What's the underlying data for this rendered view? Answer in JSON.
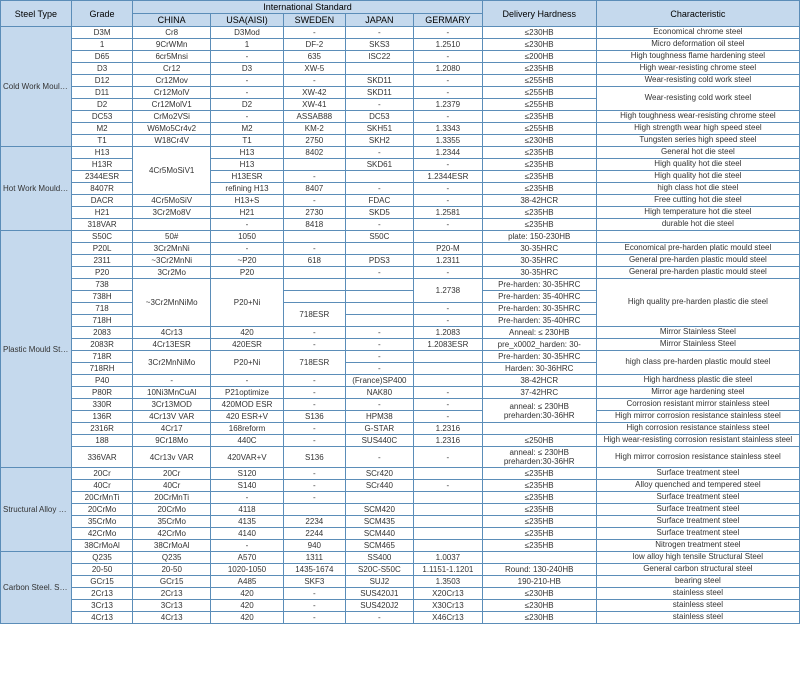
{
  "headers": {
    "steelType": "Steel Type",
    "grade": "Grade",
    "intStd": "International Standard",
    "delivery": "Delivery Hardness",
    "char": "Characteristic",
    "china": "CHINA",
    "usa": "USA(AISI)",
    "sweden": "SWEDEN",
    "japan": "JAPAN",
    "germany": "GERMARY"
  },
  "columnWidths": {
    "cat": 62,
    "grade": 54,
    "china": 68,
    "usa": 64,
    "sweden": 54,
    "japan": 60,
    "germany": 60,
    "delivery": 100,
    "char": 178
  },
  "colors": {
    "headerBg": "#c5d9ed",
    "border": "#5b8db8"
  },
  "categories": [
    {
      "name": "Cold Work Mould Steel",
      "rows": [
        {
          "grade": "D3M",
          "china": "Cr8",
          "usa": "D3Mod",
          "sweden": "-",
          "japan": "-",
          "germany": "-",
          "delivery": "≤230HB",
          "char": "Economical chrome steel"
        },
        {
          "grade": "1",
          "china": "9CrWMn",
          "usa": "1",
          "sweden": "DF-2",
          "japan": "SKS3",
          "germany": "1.2510",
          "delivery": "≤230HB",
          "char": "Micro deformation oil steel"
        },
        {
          "grade": "D65",
          "china": "6cr5Mnsi",
          "usa": "-",
          "sweden": "635",
          "japan": "ISC22",
          "germany": "-",
          "delivery": "≤200HB",
          "char": "High toughness flame hardening steel"
        },
        {
          "grade": "D3",
          "china": "Cr12",
          "usa": "D3",
          "sweden": "XW-5",
          "japan": "",
          "germany": "1.2080",
          "delivery": "≤235HB",
          "char": "High wear-resisting chrome steel"
        },
        {
          "grade": "D12",
          "china": "Cr12Mov",
          "usa": "-",
          "sweden": "-",
          "japan": "SKD11",
          "germany": "-",
          "delivery": "≤255HB",
          "char": "Wear-resisting cold work steel"
        },
        {
          "grade": "D11",
          "china": "Cr12MolV",
          "usa": "-",
          "sweden": "XW-42",
          "japan": "SKD11",
          "germany": "-",
          "delivery": "≤255HB",
          "char": "Wear-resisting cold work steel",
          "charSpan": 2
        },
        {
          "grade": "D2",
          "china": "Cr12MolV1",
          "usa": "D2",
          "sweden": "XW-41",
          "japan": "-",
          "germany": "1.2379",
          "delivery": "≤255HB"
        },
        {
          "grade": "DC53",
          "china": "CrMo2VSi",
          "usa": "-",
          "sweden": "ASSAB88",
          "japan": "DC53",
          "germany": "-",
          "delivery": "≤235HB",
          "char": "High toughness wear-resisting chrome steel"
        },
        {
          "grade": "M2",
          "china": "W6Mo5Cr4v2",
          "usa": "M2",
          "sweden": "KM-2",
          "japan": "SKH51",
          "germany": "1.3343",
          "delivery": "≤255HB",
          "char": "High strength wear high speed steel"
        },
        {
          "grade": "T1",
          "china": "W18Cr4V",
          "usa": "T1",
          "sweden": "2750",
          "japan": "SKH2",
          "germany": "1.3355",
          "delivery": "≤230HB",
          "char": "Tungsten series high speed steel"
        }
      ]
    },
    {
      "name": "Hot Work Mould Steel",
      "rows": [
        {
          "grade": "H13",
          "china": "4Cr5MoSiV1",
          "chinaSpan": 4,
          "usa": "H13",
          "sweden": "8402",
          "japan": "-",
          "germany": "1.2344",
          "delivery": "≤235HB",
          "char": "General hot die steel"
        },
        {
          "grade": "H13R",
          "usa": "H13",
          "sweden": "",
          "japan": "SKD61",
          "germany": "-",
          "delivery": "≤235HB",
          "char": "High quality hot die steel"
        },
        {
          "grade": "2344ESR",
          "usa": "H13ESR",
          "sweden": "-",
          "japan": "",
          "germany": "1.2344ESR",
          "delivery": "≤235HB",
          "char": "High quality hot die steel"
        },
        {
          "grade": "8407R",
          "usa": "refining H13",
          "sweden": "8407",
          "japan": "-",
          "germany": "-",
          "delivery": "≤235HB",
          "char": "high class hot die steel"
        },
        {
          "grade": "DACR",
          "china": "4Cr5MoSiV",
          "usa": "H13+S",
          "sweden": "-",
          "japan": "FDAC",
          "germany": "-",
          "delivery": "38-42HCR",
          "char": "Free cutting hot die steel"
        },
        {
          "grade": "H21",
          "china": "3Cr2Mo8V",
          "usa": "H21",
          "sweden": "2730",
          "japan": "SKD5",
          "germany": "1.2581",
          "delivery": "≤235HB",
          "char": "High temperature hot die steel"
        },
        {
          "grade": "318VAR",
          "china": "",
          "usa": "-",
          "sweden": "8418",
          "japan": "-",
          "germany": "-",
          "delivery": "≤235HB",
          "char": "durable hot die steel"
        }
      ]
    },
    {
      "name": "Plastic Mould Steel",
      "rows": [
        {
          "grade": "S50C",
          "china": "50#",
          "usa": "1050",
          "sweden": "",
          "japan": "S50C",
          "germany": "",
          "delivery": "plate:    150-230HB",
          "char": ""
        },
        {
          "grade": "P20L",
          "china": "3Cr2MnNi",
          "usa": "-",
          "sweden": "-",
          "japan": "",
          "germany": "P20-M",
          "delivery": "30-35HRC",
          "char": "Economical pre-harden platic mould steel"
        },
        {
          "grade": "2311",
          "china": "~3Cr2MnNi",
          "usa": "~P20",
          "sweden": "618",
          "japan": "PDS3",
          "germany": "1.2311",
          "delivery": "30-35HRC",
          "char": "General pre-harden plastic mould steel"
        },
        {
          "grade": "P20",
          "china": "3Cr2Mo",
          "usa": "P20",
          "sweden": "",
          "japan": "-",
          "germany": "-",
          "delivery": "30-35HRC",
          "char": "General pre-harden plastic mould steel"
        },
        {
          "grade": "738",
          "china": "~3Cr2MnNiMo",
          "chinaSpan": 4,
          "usa": "P20+Ni",
          "usaSpan": 4,
          "sweden": "",
          "japan": "",
          "germany": "1.2738",
          "germanySpan": 2,
          "delivery": "Pre-harden:    30-35HRC",
          "char": "High quality pre-harden plastic die steel",
          "charSpan": 4
        },
        {
          "grade": "738H",
          "sweden": "",
          "japan": "",
          "delivery": "Pre-harden:    35-40HRC"
        },
        {
          "grade": "718",
          "sweden": "718ESR",
          "swedenSpan": 2,
          "japan": "",
          "germany": "-",
          "delivery": "Pre-harden:    30-35HRC"
        },
        {
          "grade": "718H",
          "japan": "",
          "germany": "-",
          "delivery": "Pre-harden:    35-40HRC"
        },
        {
          "grade": "2083",
          "china": "4Cr13",
          "usa": "420",
          "sweden": "-",
          "japan": "-",
          "germany": "1.2083",
          "delivery": "Anneal:  ≤ 230HB",
          "char": "Mirror Stainless Steel"
        },
        {
          "grade": "2083R",
          "china": "4Cr13ESR",
          "usa": "420ESR",
          "sweden": "-",
          "japan": "-",
          "germany": "1.2083ESR",
          "delivery": "pre_x0002_harden:    30-",
          "char": "Mirror Stainless Steel"
        },
        {
          "grade": "718R",
          "china": "3Cr2MnNiMo",
          "chinaSpan": 2,
          "usa": "P20+Ni",
          "usaSpan": 2,
          "sweden": "718ESR",
          "swedenSpan": 2,
          "japan": "-",
          "germany": "",
          "delivery": "Pre-harden:    30-35HRC",
          "char": "high class pre-harden plastic mould steel",
          "charSpan": 2
        },
        {
          "grade": "718RH",
          "japan": "-",
          "germany": "",
          "delivery": "Harden: 30-36HRC"
        },
        {
          "grade": "P40",
          "china": "-",
          "usa": "-",
          "sweden": "-",
          "japan": "(France)SP400",
          "germany": "",
          "delivery": "38-42HCR",
          "char": "High hardness plastic die steel"
        },
        {
          "grade": "P80R",
          "china": "10Ni3MnCuAl",
          "usa": "P21optimize",
          "sweden": "-",
          "japan": "NAK80",
          "germany": "-",
          "delivery": "37-42HRC",
          "char": "Mirror age hardening steel"
        },
        {
          "grade": "330R",
          "china": "3Cr13MOD",
          "usa": "420MOD ESR",
          "sweden": "-",
          "japan": "-",
          "germany": "-",
          "delivery": "anneal: ≤ 230HB\npreharden:30-36HR",
          "deliverySpan": 2,
          "char": "Corrosion resistant mirror stainless steel"
        },
        {
          "grade": "136R",
          "china": "4Cr13V VAR",
          "usa": "420 ESR+V",
          "sweden": "S136",
          "japan": "HPM38",
          "germany": "-",
          "char": "High mirror corrosion resistance stainless steel"
        },
        {
          "grade": "2316R",
          "china": "4Cr17",
          "usa": "168reform",
          "sweden": "-",
          "japan": "G-STAR",
          "germany": "1.2316",
          "delivery": "",
          "char": "High corrosion resistance stainless steel"
        },
        {
          "grade": "188",
          "china": "9Cr18Mo",
          "usa": "440C",
          "sweden": "-",
          "japan": "SUS440C",
          "germany": "1.2316",
          "delivery": "≤250HB",
          "char": "High wear-resisting corrosion resistant stainless steel"
        },
        {
          "grade": "336VAR",
          "china": "4Cr13v VAR",
          "usa": "420VAR+V",
          "sweden": "S136",
          "japan": "-",
          "germany": "-",
          "delivery": "anneal: ≤ 230HB\npreharden:30-36HR",
          "char": "High mirror corrosion resistance stainless steel"
        }
      ]
    },
    {
      "name": "Structural Alloy Steel",
      "rows": [
        {
          "grade": "20Cr",
          "china": "20Cr",
          "usa": "S120",
          "sweden": "-",
          "japan": "SCr420",
          "germany": "",
          "delivery": "≤235HB",
          "char": "Surface treatment steel"
        },
        {
          "grade": "40Cr",
          "china": "40Cr",
          "usa": "S140",
          "sweden": "-",
          "japan": "SCr440",
          "germany": "-",
          "delivery": "≤235HB",
          "char": "Alloy quenched and tempered steel"
        },
        {
          "grade": "20CrMnTi",
          "china": "20CrMnTi",
          "usa": "-",
          "sweden": "-",
          "japan": "",
          "germany": "",
          "delivery": "≤235HB",
          "char": "Surface treatment steel"
        },
        {
          "grade": "20CrMo",
          "china": "20CrMo",
          "usa": "4118",
          "sweden": "",
          "japan": "SCM420",
          "germany": "",
          "delivery": "≤235HB",
          "char": "Surface treatment steel"
        },
        {
          "grade": "35CrMo",
          "china": "35CrMo",
          "usa": "4135",
          "sweden": "2234",
          "japan": "SCM435",
          "germany": "",
          "delivery": "≤235HB",
          "char": "Surface treatment steel"
        },
        {
          "grade": "42CrMo",
          "china": "42CrMo",
          "usa": "4140",
          "sweden": "2244",
          "japan": "SCM440",
          "germany": "",
          "delivery": "≤235HB",
          "char": "Surface treatment steel"
        },
        {
          "grade": "38CrMoAl",
          "china": "38CrMoAl",
          "usa": "-",
          "sweden": "940",
          "japan": "SCM465",
          "germany": "",
          "delivery": "≤235HB",
          "char": "Nitrogen treatment steel"
        }
      ]
    },
    {
      "name": "Carbon Steel. Stainless Steel",
      "rows": [
        {
          "grade": "Q235",
          "china": "Q235",
          "usa": "A570",
          "sweden": "1311",
          "japan": "SS400",
          "germany": "1.0037",
          "delivery": "",
          "char": "low alloy high tensile Structural Steel"
        },
        {
          "grade": "20-50",
          "china": "20-50",
          "usa": "1020-1050",
          "sweden": "1435-1674",
          "japan": "S20C-S50C",
          "germany": "1.1151-1.1201",
          "delivery": "Round: 130-240HB",
          "char": "General carbon structural steel"
        },
        {
          "grade": "GCr15",
          "china": "GCr15",
          "usa": "A485",
          "sweden": "SKF3",
          "japan": "SUJ2",
          "germany": "1.3503",
          "delivery": "190-210-HB",
          "char": "bearing steel"
        },
        {
          "grade": "2Cr13",
          "china": "2Cr13",
          "usa": "420",
          "sweden": "-",
          "japan": "SUS420J1",
          "germany": "X20Cr13",
          "delivery": "≤230HB",
          "char": "stainless steel"
        },
        {
          "grade": "3Cr13",
          "china": "3Cr13",
          "usa": "420",
          "sweden": "-",
          "japan": "SUS420J2",
          "germany": "X30Cr13",
          "delivery": "≤230HB",
          "char": "stainless steel"
        },
        {
          "grade": "4Cr13",
          "china": "4Cr13",
          "usa": "420",
          "sweden": "-",
          "japan": "-",
          "germany": "X46Cr13",
          "delivery": "≤230HB",
          "char": "stainless steel"
        }
      ]
    }
  ]
}
